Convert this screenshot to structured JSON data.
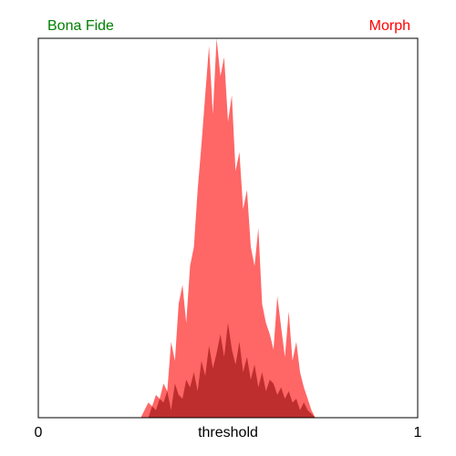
{
  "chart_data": {
    "type": "area",
    "title": "",
    "xlabel": "threshold",
    "ylabel": "",
    "xlim": [
      0,
      1
    ],
    "ylim": [
      0,
      1
    ],
    "x_tick_labels": [
      "0",
      "1"
    ],
    "grid": false,
    "legend_position": "top",
    "series": [
      {
        "name": "Bona Fide",
        "color": "#008000",
        "fill_color": "#8B0000",
        "opacity": 0.55,
        "x": [
          0.29,
          0.3,
          0.31,
          0.32,
          0.33,
          0.34,
          0.35,
          0.36,
          0.37,
          0.38,
          0.39,
          0.4,
          0.41,
          0.42,
          0.43,
          0.44,
          0.45,
          0.46,
          0.47,
          0.48,
          0.49,
          0.5,
          0.51,
          0.52,
          0.53,
          0.54,
          0.55,
          0.56,
          0.57,
          0.58,
          0.59,
          0.6,
          0.61,
          0.62,
          0.63,
          0.64,
          0.65,
          0.66,
          0.67,
          0.68,
          0.69,
          0.7,
          0.71,
          0.72,
          0.73
        ],
        "y": [
          0.0,
          0.03,
          0.02,
          0.05,
          0.04,
          0.07,
          0.02,
          0.09,
          0.06,
          0.05,
          0.1,
          0.08,
          0.12,
          0.07,
          0.15,
          0.11,
          0.19,
          0.13,
          0.17,
          0.22,
          0.16,
          0.25,
          0.18,
          0.14,
          0.2,
          0.12,
          0.16,
          0.1,
          0.14,
          0.08,
          0.12,
          0.07,
          0.1,
          0.09,
          0.06,
          0.08,
          0.05,
          0.07,
          0.04,
          0.05,
          0.02,
          0.04,
          0.02,
          0.01,
          0.0
        ]
      },
      {
        "name": "Morph",
        "color": "#FF0000",
        "fill_color": "#FF0000",
        "opacity": 0.6,
        "x": [
          0.27,
          0.28,
          0.29,
          0.3,
          0.31,
          0.32,
          0.33,
          0.34,
          0.35,
          0.36,
          0.37,
          0.38,
          0.39,
          0.4,
          0.41,
          0.42,
          0.43,
          0.44,
          0.45,
          0.46,
          0.47,
          0.48,
          0.49,
          0.5,
          0.51,
          0.52,
          0.53,
          0.54,
          0.55,
          0.56,
          0.57,
          0.58,
          0.59,
          0.6,
          0.61,
          0.62,
          0.63,
          0.64,
          0.65,
          0.66,
          0.67,
          0.68,
          0.69,
          0.7,
          0.71,
          0.72,
          0.73
        ],
        "y": [
          0.0,
          0.02,
          0.04,
          0.03,
          0.06,
          0.05,
          0.09,
          0.07,
          0.2,
          0.15,
          0.3,
          0.35,
          0.25,
          0.4,
          0.45,
          0.6,
          0.72,
          0.85,
          0.98,
          0.8,
          1.0,
          0.9,
          0.95,
          0.78,
          0.85,
          0.65,
          0.7,
          0.55,
          0.6,
          0.45,
          0.4,
          0.5,
          0.3,
          0.25,
          0.22,
          0.18,
          0.32,
          0.24,
          0.16,
          0.28,
          0.15,
          0.2,
          0.12,
          0.08,
          0.05,
          0.02,
          0.0
        ]
      }
    ]
  }
}
